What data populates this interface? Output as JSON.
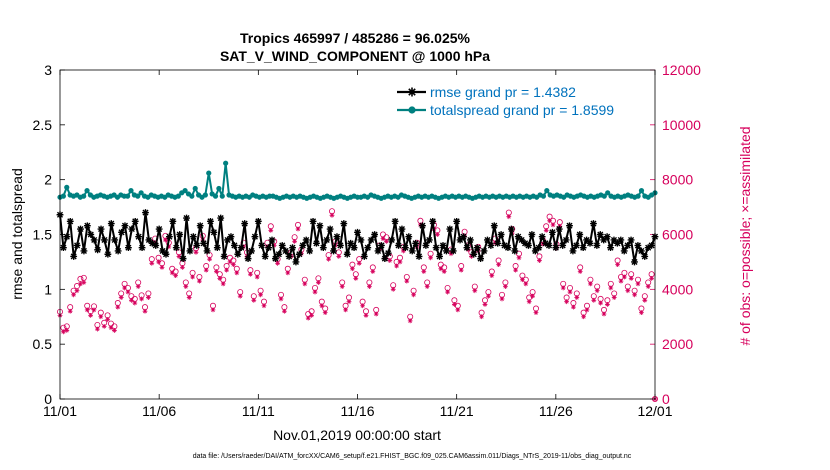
{
  "chart_data": {
    "type": "line",
    "title_line1": "Tropics 465997 / 485286 = 96.025%",
    "title_line2": "SAT_V_WIND_COMPONENT @ 1000 hPa",
    "xlabel": "Nov.01,2019 00:00:00 start",
    "ylabel_left": "rmse and totalspread",
    "ylabel_right": "# of obs: o=possible; ×=assimilated",
    "footnote": "data file: /Users/raeder/DAI/ATM_forcXX/CAM6_setup/f.e21.FHIST_BGC.f09_025.CAM6assim.011/Diags_NTrS_2019-11/obs_diag_output.nc",
    "x_ticks": [
      "11/01",
      "11/06",
      "11/11",
      "11/16",
      "11/21",
      "11/26",
      "12/01"
    ],
    "y_left_ticks": [
      "0",
      "0.5",
      "1",
      "1.5",
      "2",
      "2.5",
      "3"
    ],
    "y_right_ticks": [
      "0",
      "2000",
      "4000",
      "6000",
      "8000",
      "10000",
      "12000"
    ],
    "xlim": [
      0,
      30
    ],
    "ylim_left": [
      0,
      3
    ],
    "ylim_right": [
      0,
      12000
    ],
    "colors": {
      "rmse": "#000000",
      "spread": "#008080",
      "obs": "#d6005c",
      "legend_text": "#0072bd"
    },
    "series": [
      {
        "name": "rmse grand pr = 1.4382",
        "values": [
          1.68,
          1.38,
          1.48,
          1.62,
          1.3,
          1.4,
          1.55,
          1.35,
          1.58,
          1.5,
          1.45,
          1.36,
          1.55,
          1.45,
          1.32,
          1.6,
          1.45,
          1.35,
          1.52,
          1.58,
          1.38,
          1.55,
          1.62,
          1.48,
          1.38,
          1.7,
          1.45,
          1.42,
          1.4,
          1.55,
          1.35,
          1.32,
          1.48,
          1.62,
          1.38,
          1.5,
          1.28,
          1.65,
          1.35,
          1.48,
          1.4,
          1.58,
          1.42,
          1.35,
          1.62,
          1.52,
          1.38,
          1.65,
          1.3,
          1.45,
          1.48,
          1.4,
          1.32,
          1.38,
          1.6,
          1.28,
          1.35,
          1.48,
          1.62,
          1.4,
          1.3,
          1.38,
          1.45,
          1.28,
          1.32,
          1.4,
          1.35,
          1.3,
          1.38,
          1.25,
          1.32,
          1.4,
          1.45,
          1.35,
          1.62,
          1.42,
          1.58,
          1.38,
          1.45,
          1.55,
          1.35,
          1.48,
          1.4,
          1.6,
          1.32,
          1.42,
          1.38,
          1.52,
          1.45,
          1.3,
          1.38,
          1.45,
          1.5,
          1.35,
          1.4,
          1.28,
          1.33,
          1.45,
          1.62,
          1.4,
          1.55,
          1.38,
          1.48,
          1.35,
          1.42,
          1.3,
          1.58,
          1.4,
          1.45,
          1.62,
          1.38,
          1.3,
          1.4,
          1.35,
          1.55,
          1.35,
          1.62,
          1.45,
          1.48,
          1.38,
          1.45,
          1.32,
          1.38,
          1.28,
          1.35,
          1.45,
          1.4,
          1.58,
          1.42,
          1.5,
          1.4,
          1.38,
          1.55,
          1.35,
          1.48,
          1.45,
          1.42,
          1.4,
          1.5,
          1.35,
          1.38,
          1.48,
          1.42,
          1.4,
          1.52,
          1.38,
          1.55,
          1.4,
          1.45,
          1.58,
          1.35,
          1.4,
          1.5,
          1.38,
          1.45,
          1.42,
          1.6,
          1.4,
          1.5,
          1.45,
          1.48,
          1.38,
          1.45,
          1.42,
          1.45,
          1.35,
          1.4,
          1.45,
          1.25,
          1.4,
          1.35,
          1.3,
          1.38,
          1.4,
          1.48
        ]
      },
      {
        "name": "totalspread grand pr = 1.8599",
        "values": [
          1.84,
          1.85,
          1.93,
          1.86,
          1.85,
          1.86,
          1.84,
          1.85,
          1.9,
          1.86,
          1.84,
          1.85,
          1.86,
          1.85,
          1.84,
          1.85,
          1.86,
          1.84,
          1.86,
          1.85,
          1.85,
          1.9,
          1.86,
          1.85,
          1.88,
          1.85,
          1.84,
          1.86,
          1.85,
          1.84,
          1.85,
          1.84,
          1.86,
          1.85,
          1.84,
          1.85,
          1.88,
          1.9,
          1.87,
          1.85,
          1.92,
          1.86,
          1.84,
          1.86,
          2.06,
          1.87,
          1.85,
          1.92,
          1.85,
          2.15,
          1.86,
          1.85,
          1.84,
          1.85,
          1.84,
          1.85,
          1.84,
          1.86,
          1.85,
          1.84,
          1.85,
          1.84,
          1.85,
          1.85,
          1.84,
          1.83,
          1.84,
          1.85,
          1.84,
          1.85,
          1.84,
          1.85,
          1.84,
          1.83,
          1.84,
          1.85,
          1.84,
          1.83,
          1.84,
          1.85,
          1.84,
          1.83,
          1.84,
          1.85,
          1.84,
          1.83,
          1.84,
          1.85,
          1.84,
          1.84,
          1.85,
          1.84,
          1.86,
          1.85,
          1.84,
          1.83,
          1.84,
          1.85,
          1.84,
          1.85,
          1.84,
          1.86,
          1.85,
          1.84,
          1.83,
          1.84,
          1.85,
          1.84,
          1.85,
          1.84,
          1.85,
          1.84,
          1.83,
          1.84,
          1.85,
          1.84,
          1.85,
          1.84,
          1.85,
          1.84,
          1.85,
          1.84,
          1.83,
          1.84,
          1.85,
          1.84,
          1.85,
          1.84,
          1.85,
          1.84,
          1.85,
          1.84,
          1.85,
          1.84,
          1.85,
          1.84,
          1.85,
          1.84,
          1.85,
          1.84,
          1.85,
          1.84,
          1.86,
          1.85,
          1.9,
          1.86,
          1.85,
          1.86,
          1.85,
          1.84,
          1.86,
          1.85,
          1.84,
          1.85,
          1.86,
          1.85,
          1.84,
          1.85,
          1.84,
          1.85,
          1.86,
          1.85,
          1.88,
          1.85,
          1.84,
          1.85,
          1.84,
          1.85,
          1.86,
          1.85,
          1.84,
          1.85,
          1.9,
          1.85,
          1.84,
          1.86,
          1.88
        ]
      }
    ],
    "obs_possible": [
      3180,
      2600,
      2650,
      3350,
      3950,
      4120,
      4380,
      4420,
      3400,
      3200,
      3380,
      2700,
      3150,
      2780,
      3050,
      2750,
      2650,
      3500,
      3850,
      4200,
      4050,
      3750,
      3650,
      4250,
      3780,
      3350,
      3850,
      5100,
      5850,
      5150,
      4950,
      5950,
      5700,
      4750,
      4650,
      5350,
      4950,
      4250,
      3850,
      4600,
      5500,
      4450,
      5950,
      4850,
      5250,
      3400,
      4800,
      4550,
      4350,
      4850,
      5150,
      5050,
      4750,
      3900,
      5700,
      5350,
      4700,
      3750,
      4600,
      3950,
      3550,
      5700,
      6300,
      5750,
      5100,
      3800,
      3350,
      4750,
      5350,
      5900,
      6350,
      5450,
      4350,
      3100,
      3200,
      4050,
      4400,
      3550,
      3300,
      5250,
      6850,
      5750,
      5350,
      4250,
      3400,
      3700,
      4900,
      4550,
      5100,
      3550,
      3200,
      4250,
      4800,
      3250,
      5600,
      6000,
      5900,
      5200,
      4150,
      5000,
      5150,
      5550,
      4450,
      3000,
      3950,
      5700,
      6500,
      4800,
      4250,
      5300,
      6350,
      6150,
      4900,
      4800,
      4050,
      5450,
      3600,
      3400,
      4850,
      6100,
      5600,
      5350,
      4100,
      5550,
      3150,
      3600,
      3900,
      4650,
      5850,
      5050,
      3800,
      4250,
      6800,
      6200,
      4850,
      5300,
      4500,
      4350,
      3700,
      3900,
      3300,
      5200,
      5800,
      6300,
      6650,
      6500,
      5650,
      6450,
      4200,
      3700,
      4050,
      3500,
      3850,
      4800,
      3150,
      3400,
      4350,
      3750,
      4100,
      3650,
      3250,
      3600,
      4200,
      3850,
      5050,
      4450,
      4600,
      4100,
      4550,
      3950,
      4350,
      3300,
      3750,
      4250,
      4550,
      0
    ],
    "obs_assimilated": [
      3050,
      2450,
      2500,
      3200,
      3800,
      3950,
      4200,
      4250,
      3250,
      3050,
      3250,
      2550,
      3000,
      2650,
      2900,
      2600,
      2500,
      3350,
      3700,
      4050,
      3900,
      3600,
      3500,
      4100,
      3650,
      3200,
      3700,
      4950,
      5700,
      5000,
      4800,
      5800,
      5550,
      4600,
      4500,
      5200,
      4800,
      4100,
      3700,
      4450,
      5350,
      4300,
      5800,
      4700,
      5100,
      3250,
      4650,
      4400,
      4200,
      4700,
      5000,
      4900,
      4600,
      3750,
      5550,
      5200,
      4550,
      3600,
      4450,
      3800,
      3400,
      5550,
      6150,
      5600,
      4950,
      3650,
      3200,
      4600,
      5200,
      5750,
      6200,
      5300,
      4200,
      2950,
      3050,
      3900,
      4250,
      3400,
      3150,
      5100,
      6700,
      5600,
      5200,
      4100,
      3250,
      3550,
      4750,
      4400,
      4950,
      3400,
      3050,
      4100,
      4650,
      3100,
      5450,
      5850,
      5750,
      5050,
      4000,
      4850,
      5000,
      5400,
      4300,
      2850,
      3800,
      5550,
      6350,
      4650,
      4100,
      5150,
      6200,
      6000,
      4750,
      4650,
      3900,
      5300,
      3450,
      3250,
      4700,
      5950,
      5450,
      5200,
      3950,
      5400,
      3000,
      3450,
      3750,
      4500,
      5700,
      4900,
      3650,
      4100,
      6650,
      6050,
      4700,
      5150,
      4350,
      4200,
      3550,
      3750,
      3150,
      5050,
      5650,
      6150,
      6500,
      6350,
      5500,
      6300,
      4050,
      3550,
      3900,
      3350,
      3700,
      4650,
      3000,
      3250,
      4200,
      3600,
      3950,
      3500,
      3100,
      3450,
      4050,
      3700,
      4900,
      4300,
      4450,
      3950,
      4400,
      3800,
      4200,
      3150,
      3600,
      4100,
      4400,
      0
    ]
  }
}
